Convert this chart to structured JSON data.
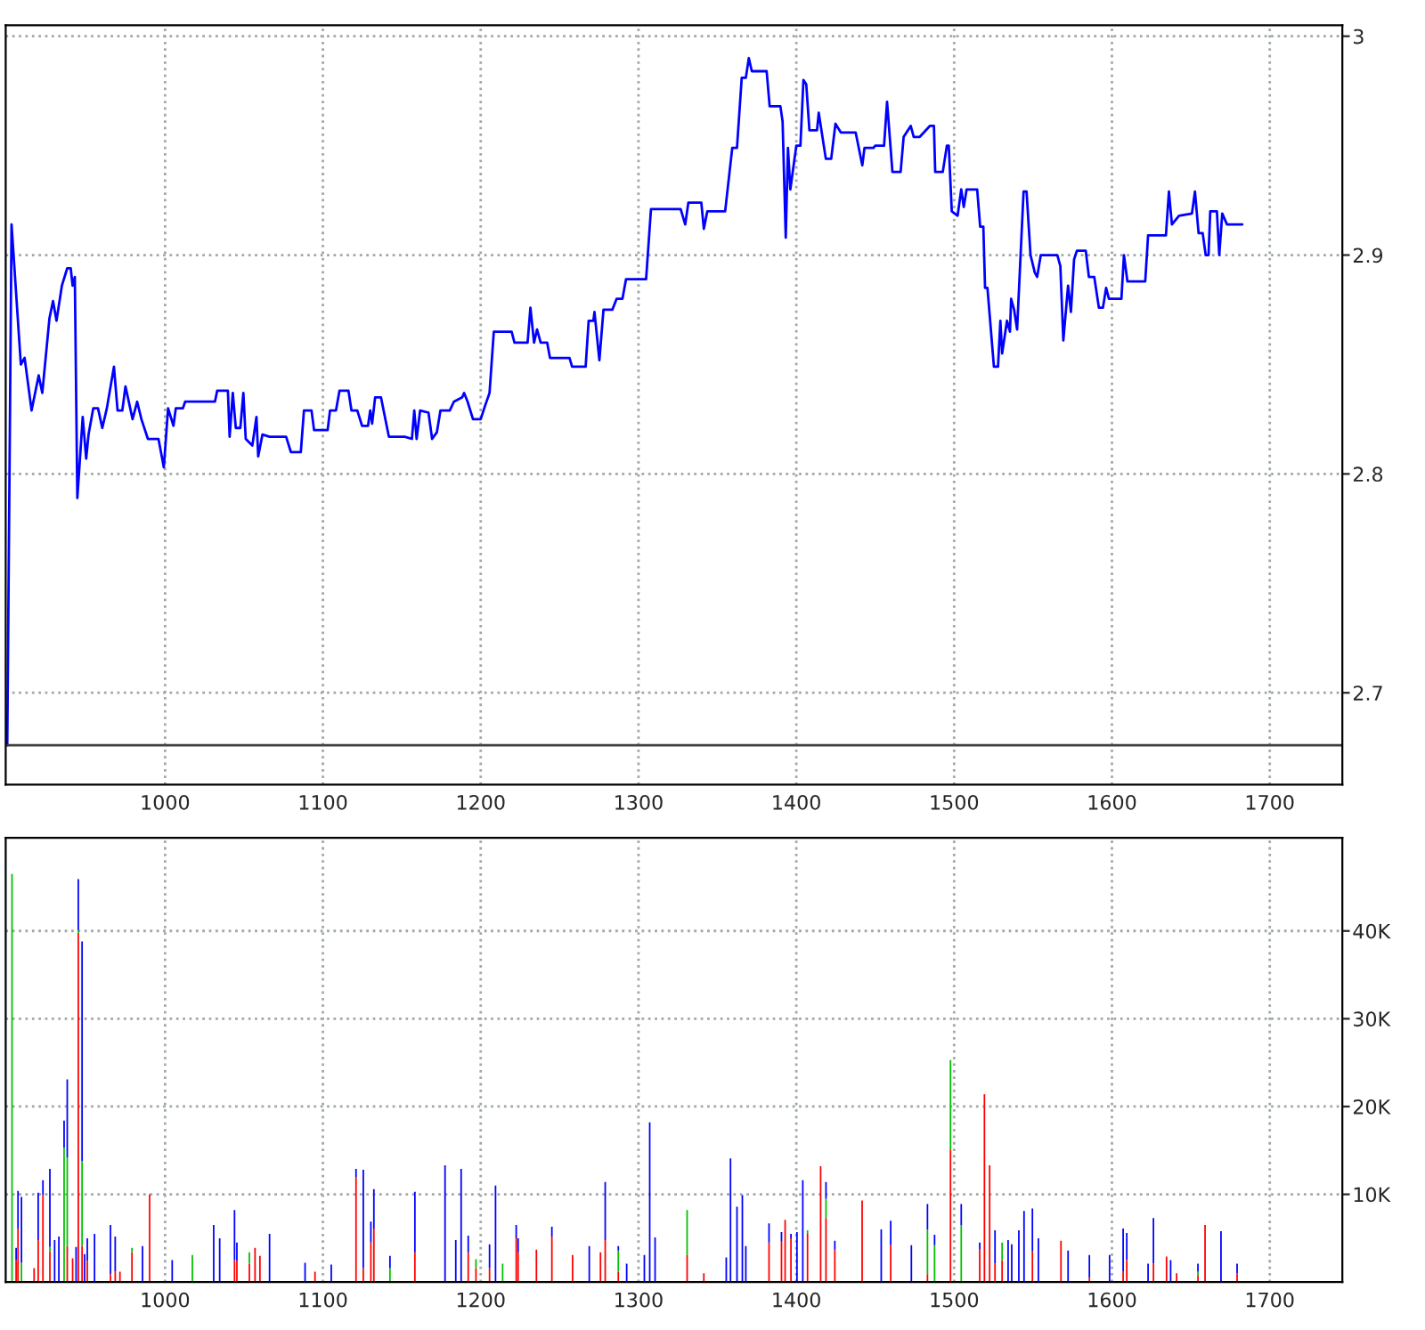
{
  "chart_data": [
    {
      "type": "line",
      "xlim": [
        899,
        1746
      ],
      "ylim": [
        2.658,
        3.005
      ],
      "xticks": [
        1000,
        1100,
        1200,
        1300,
        1400,
        1500,
        1600,
        1700
      ],
      "yticks": [
        2.7,
        2.8,
        2.9,
        3
      ],
      "grid": true,
      "marker": "none",
      "line_style": "solid",
      "ref_lines": [
        {
          "axis": "y",
          "value": 2.676,
          "color": "#404040"
        }
      ],
      "series": [
        {
          "color": "#0000ff",
          "x": [
            900,
            902.7,
            908.6,
            911,
            915.4,
            919.9,
            922.2,
            926.7,
            929,
            931.2,
            934.6,
            938,
            940.2,
            941.4,
            942.8,
            944.4,
            947.8,
            950,
            951.5,
            954.5,
            957.5,
            960.2,
            963.1,
            967.6,
            969.9,
            972.9,
            974.9,
            979.4,
            982.3,
            985,
            989.1,
            995.8,
            999.2,
            1001.9,
            1005.3,
            1006.8,
            1011.3,
            1012.7,
            1031.6,
            1033,
            1039.8,
            1040.9,
            1042.9,
            1044.8,
            1047.7,
            1049.6,
            1051.1,
            1055.3,
            1057.9,
            1059,
            1061.7,
            1066.2,
            1076.7,
            1079.7,
            1086,
            1088,
            1092.8,
            1094.4,
            1103,
            1104.5,
            1108.3,
            1110.5,
            1116.2,
            1118.1,
            1121.8,
            1124.8,
            1128.6,
            1130,
            1131.2,
            1133.1,
            1136.8,
            1141.8,
            1151.9,
            1156.4,
            1157.9,
            1159.4,
            1161.6,
            1166.9,
            1169.2,
            1172.2,
            1174.5,
            1180.4,
            1183,
            1188.3,
            1189.5,
            1191.7,
            1195.1,
            1200,
            1202.7,
            1205.6,
            1208.3,
            1219.6,
            1221.4,
            1229.7,
            1231.5,
            1233.8,
            1235.7,
            1238,
            1242.1,
            1243.9,
            1256.3,
            1257.9,
            1266.5,
            1268.4,
            1271.4,
            1272.1,
            1275.2,
            1277.8,
            1283.4,
            1286.1,
            1289.8,
            1292.1,
            1304.8,
            1307.9,
            1326.7,
            1329.6,
            1331.6,
            1339.8,
            1341.4,
            1343.6,
            1354.9,
            1359.4,
            1362.4,
            1365.4,
            1368,
            1369.9,
            1371.8,
            1381.2,
            1383.1,
            1389.9,
            1391.3,
            1393.3,
            1394.7,
            1396.2,
            1400,
            1402.6,
            1404.5,
            1406.3,
            1408.3,
            1413.1,
            1414.2,
            1418.7,
            1422.1,
            1424.8,
            1428.2,
            1437.6,
            1441.8,
            1443.2,
            1448.9,
            1450,
            1455.6,
            1457.5,
            1460.9,
            1466.1,
            1468,
            1472.5,
            1474.4,
            1478.2,
            1484.6,
            1487.2,
            1488,
            1492.8,
            1495.4,
            1496.6,
            1498.5,
            1502.2,
            1504.5,
            1506.1,
            1507.9,
            1514.6,
            1516.5,
            1518.5,
            1519.6,
            1521.1,
            1525.2,
            1527.8,
            1529.3,
            1530.4,
            1533.5,
            1535.4,
            1536.1,
            1538,
            1539.9,
            1544,
            1545.9,
            1548.4,
            1551.1,
            1552.6,
            1554.9,
            1565.4,
            1567.3,
            1569.2,
            1572.2,
            1574,
            1576,
            1577.8,
            1583.4,
            1585.4,
            1588.8,
            1591.7,
            1594.3,
            1596.3,
            1598.1,
            1606,
            1607.6,
            1609.8,
            1621.1,
            1622.9,
            1634.2,
            1636.1,
            1638,
            1642.5,
            1650.7,
            1652.6,
            1654.9,
            1657.5,
            1659.4,
            1661.2,
            1662.3,
            1666.5,
            1668,
            1669.9,
            1672.9,
            1682.6
          ],
          "values": [
            2.676,
            2.914,
            2.85,
            2.853,
            2.829,
            2.845,
            2.837,
            2.871,
            2.879,
            2.87,
            2.886,
            2.894,
            2.894,
            2.886,
            2.89,
            2.789,
            2.826,
            2.807,
            2.818,
            2.83,
            2.83,
            2.821,
            2.83,
            2.849,
            2.829,
            2.829,
            2.84,
            2.825,
            2.833,
            2.825,
            2.816,
            2.816,
            2.803,
            2.83,
            2.822,
            2.83,
            2.83,
            2.833,
            2.833,
            2.838,
            2.838,
            2.817,
            2.837,
            2.821,
            2.821,
            2.837,
            2.816,
            2.813,
            2.826,
            2.808,
            2.818,
            2.817,
            2.817,
            2.81,
            2.81,
            2.829,
            2.829,
            2.82,
            2.82,
            2.829,
            2.829,
            2.838,
            2.838,
            2.829,
            2.829,
            2.822,
            2.822,
            2.829,
            2.823,
            2.835,
            2.835,
            2.817,
            2.817,
            2.816,
            2.829,
            2.816,
            2.829,
            2.828,
            2.816,
            2.819,
            2.829,
            2.829,
            2.833,
            2.835,
            2.837,
            2.833,
            2.825,
            2.825,
            2.831,
            2.837,
            2.865,
            2.865,
            2.86,
            2.86,
            2.876,
            2.86,
            2.866,
            2.86,
            2.86,
            2.853,
            2.853,
            2.849,
            2.849,
            2.87,
            2.87,
            2.874,
            2.852,
            2.875,
            2.875,
            2.88,
            2.88,
            2.889,
            2.889,
            2.921,
            2.921,
            2.914,
            2.924,
            2.924,
            2.912,
            2.92,
            2.92,
            2.949,
            2.949,
            2.981,
            2.981,
            2.99,
            2.984,
            2.984,
            2.968,
            2.968,
            2.961,
            2.908,
            2.949,
            2.93,
            2.95,
            2.95,
            2.98,
            2.978,
            2.957,
            2.957,
            2.965,
            2.944,
            2.944,
            2.96,
            2.956,
            2.956,
            2.941,
            2.949,
            2.949,
            2.95,
            2.95,
            2.97,
            2.938,
            2.938,
            2.954,
            2.959,
            2.954,
            2.954,
            2.959,
            2.959,
            2.938,
            2.938,
            2.95,
            2.95,
            2.92,
            2.918,
            2.93,
            2.922,
            2.93,
            2.93,
            2.913,
            2.913,
            2.885,
            2.885,
            2.849,
            2.849,
            2.87,
            2.855,
            2.87,
            2.865,
            2.88,
            2.875,
            2.866,
            2.929,
            2.929,
            2.9,
            2.892,
            2.89,
            2.9,
            2.9,
            2.895,
            2.861,
            2.886,
            2.874,
            2.898,
            2.902,
            2.902,
            2.89,
            2.89,
            2.876,
            2.876,
            2.885,
            2.88,
            2.88,
            2.9,
            2.888,
            2.888,
            2.909,
            2.909,
            2.929,
            2.914,
            2.918,
            2.919,
            2.929,
            2.91,
            2.91,
            2.9,
            2.9,
            2.92,
            2.92,
            2.9,
            2.919,
            2.914,
            2.914
          ]
        }
      ]
    },
    {
      "type": "bar",
      "stacked": true,
      "xlim": [
        899,
        1746
      ],
      "ylim": [
        0,
        50600
      ],
      "xticks": [
        1000,
        1100,
        1200,
        1300,
        1400,
        1500,
        1600,
        1700
      ],
      "yticks": [
        {
          "value": 10000,
          "label": "10K"
        },
        {
          "value": 20000,
          "label": "20K"
        },
        {
          "value": 30000,
          "label": "30K"
        },
        {
          "value": 40000,
          "label": "40K"
        }
      ],
      "grid": true,
      "x": [
        903,
        905.6,
        906.8,
        909,
        917,
        919.6,
        922.6,
        927,
        930,
        932.7,
        936,
        938,
        941.4,
        943.6,
        945,
        947.4,
        949,
        950.7,
        955.3,
        965.4,
        968.4,
        971.4,
        979,
        985.7,
        990.2,
        1004.5,
        1017.3,
        1030.8,
        1034.6,
        1044,
        1045.5,
        1053.4,
        1057,
        1060.1,
        1066.2,
        1088.7,
        1095,
        1105.3,
        1121,
        1125.6,
        1130.4,
        1132.3,
        1142.5,
        1158.3,
        1177.4,
        1184.2,
        1187.6,
        1192.1,
        1197,
        1205.6,
        1209.4,
        1213.9,
        1222.5,
        1223.7,
        1235.3,
        1245.1,
        1258.2,
        1268.8,
        1275.9,
        1278.9,
        1287.2,
        1292.5,
        1303.7,
        1307.1,
        1310.5,
        1330.8,
        1341.4,
        1355.6,
        1358.3,
        1362.4,
        1365.8,
        1368,
        1382.7,
        1390.6,
        1392.9,
        1396.6,
        1400.4,
        1404.1,
        1407.1,
        1415.4,
        1418.8,
        1424.4,
        1441.7,
        1453.8,
        1459.8,
        1472.9,
        1483.1,
        1487.6,
        1497.7,
        1504.5,
        1516.2,
        1519.2,
        1522.5,
        1525.9,
        1530.4,
        1534.2,
        1536.5,
        1541,
        1544.3,
        1549.6,
        1553.4,
        1567.7,
        1572.2,
        1585.7,
        1598.5,
        1607.1,
        1609.4,
        1622.9,
        1626.3,
        1634.6,
        1637.2,
        1641,
        1654.5,
        1659,
        1669.1,
        1679.3
      ],
      "series": [
        {
          "color": "#ff0000",
          "values": [
            0,
            2500,
            6100,
            0,
            1600,
            4800,
            9900,
            3500,
            0,
            0,
            0,
            4100,
            2700,
            0,
            39800,
            4100,
            0,
            2400,
            0,
            900,
            1200,
            1200,
            3400,
            0,
            10000,
            0,
            0,
            0,
            0,
            2500,
            2400,
            2100,
            3900,
            3000,
            0,
            0,
            1200,
            0,
            12000,
            1600,
            4500,
            6100,
            0,
            3400,
            0,
            0,
            0,
            3400,
            1600,
            1600,
            0,
            0,
            5000,
            3400,
            3700,
            5200,
            3100,
            0,
            3400,
            4800,
            1200,
            0,
            0,
            0,
            0,
            3100,
            1000,
            0,
            0,
            0,
            0,
            0,
            4500,
            4600,
            7100,
            5000,
            0,
            0,
            5500,
            13200,
            7300,
            3700,
            9300,
            0,
            4200,
            0,
            900,
            0,
            15100,
            0,
            3700,
            21400,
            13300,
            2100,
            2500,
            0,
            0,
            0,
            0,
            3500,
            0,
            4700,
            0,
            500,
            0,
            1200,
            2500,
            0,
            2100,
            2900,
            null,
            1000,
            800,
            6500,
            0,
            1000
          ]
        },
        {
          "color": "#00c000",
          "values": [
            46500,
            0,
            0,
            2200,
            0,
            0,
            0,
            500,
            0,
            0,
            15300,
            10100,
            0,
            0,
            300,
            9700,
            0,
            0,
            0,
            0,
            0,
            0,
            500,
            0,
            0,
            0,
            3100,
            0,
            0,
            0,
            0,
            1300,
            0,
            0,
            0,
            0,
            0,
            0,
            0,
            0,
            0,
            0,
            1600,
            null,
            0,
            0,
            0,
            0,
            1000,
            0,
            0,
            2100,
            0,
            null,
            0,
            0,
            0,
            0,
            0,
            0,
            2400,
            0,
            0,
            0,
            0,
            5100,
            0,
            null,
            0,
            0,
            0,
            0,
            0,
            0,
            0,
            0,
            0,
            0,
            400,
            0,
            2200,
            0,
            0,
            0,
            0,
            0,
            5100,
            4200,
            10200,
            6500,
            0,
            0,
            0,
            0,
            2000,
            0,
            0,
            0,
            0,
            0,
            0,
            0,
            0,
            0,
            0,
            0,
            0,
            0,
            0,
            0,
            0,
            0,
            400,
            0,
            0,
            0
          ]
        },
        {
          "color": "#0000ff",
          "values": [
            0,
            1400,
            4300,
            7500,
            0,
            5400,
            1700,
            8900,
            4800,
            5200,
            3100,
            8900,
            0,
            4000,
            5800,
            25000,
            3200,
            2600,
            5500,
            5600,
            4000,
            0,
            0,
            4100,
            0,
            2500,
            0,
            6500,
            5000,
            5700,
            2100,
            0,
            0,
            0,
            5500,
            2200,
            0,
            2000,
            900,
            11200,
            2400,
            4500,
            1400,
            6900,
            13300,
            4800,
            12900,
            1900,
            0,
            2700,
            11000,
            0,
            1500,
            1600,
            0,
            1100,
            0,
            4100,
            0,
            6600,
            500,
            2100,
            3100,
            18200,
            5100,
            0,
            0,
            2800,
            14100,
            8600,
            9900,
            4100,
            2200,
            1100,
            0,
            500,
            5700,
            11600,
            0,
            0,
            1900,
            1000,
            0,
            6000,
            2800,
            4200,
            2900,
            1200,
            0,
            2400,
            800,
            0,
            0,
            3800,
            0,
            4800,
            4300,
            5900,
            8100,
            4900,
            5000,
            0,
            3600,
            2600,
            3100,
            4900,
            3100,
            2100,
            5200,
            0,
            2500,
            0,
            900,
            0,
            5800,
            1100
          ]
        }
      ]
    }
  ]
}
